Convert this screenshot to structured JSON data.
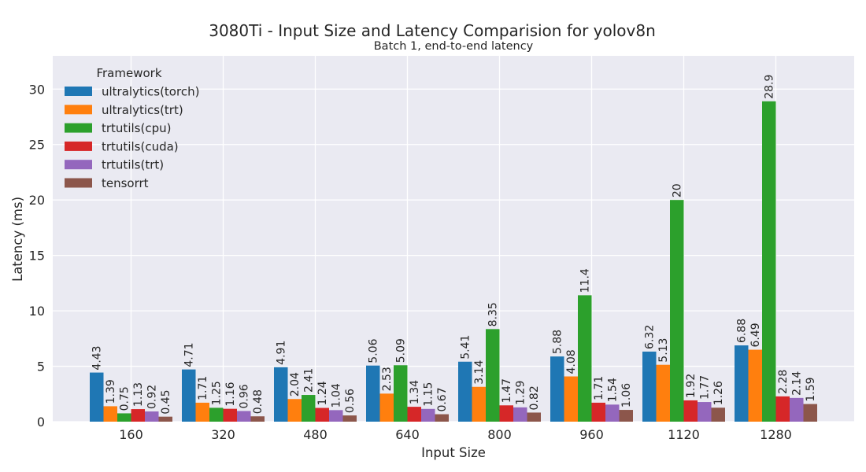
{
  "chart_data": {
    "type": "bar",
    "title": "3080Ti - Input Size and Latency Comparision for yolov8n",
    "subtitle": "Batch 1, end-to-end latency",
    "xlabel": "Input Size",
    "ylabel": "Latency (ms)",
    "ylim": [
      0,
      33
    ],
    "yticks": [
      0,
      5,
      10,
      15,
      20,
      25,
      30
    ],
    "grid": true,
    "legend_title": "Framework",
    "legend_position": "top-left",
    "categories": [
      "160",
      "320",
      "480",
      "640",
      "800",
      "960",
      "1120",
      "1280"
    ],
    "series": [
      {
        "name": "ultralytics(torch)",
        "color": "#1f77b4",
        "values": [
          4.43,
          4.71,
          4.91,
          5.06,
          5.41,
          5.88,
          6.32,
          6.88
        ],
        "labels": [
          "4.43",
          "4.71",
          "4.91",
          "5.06",
          "5.41",
          "5.88",
          "6.32",
          "6.88"
        ]
      },
      {
        "name": "ultralytics(trt)",
        "color": "#ff7f0e",
        "values": [
          1.39,
          1.71,
          2.04,
          2.53,
          3.14,
          4.08,
          5.13,
          6.49
        ],
        "labels": [
          "1.39",
          "1.71",
          "2.04",
          "2.53",
          "3.14",
          "4.08",
          "5.13",
          "6.49"
        ]
      },
      {
        "name": "trtutils(cpu)",
        "color": "#2ca02c",
        "values": [
          0.75,
          1.25,
          2.41,
          5.09,
          8.35,
          11.4,
          20,
          28.9
        ],
        "labels": [
          "0.75",
          "1.25",
          "2.41",
          "5.09",
          "8.35",
          "11.4",
          "20",
          "28.9"
        ]
      },
      {
        "name": "trtutils(cuda)",
        "color": "#d62728",
        "values": [
          1.13,
          1.16,
          1.24,
          1.34,
          1.47,
          1.71,
          1.92,
          2.28
        ],
        "labels": [
          "1.13",
          "1.16",
          "1.24",
          "1.34",
          "1.47",
          "1.71",
          "1.92",
          "2.28"
        ]
      },
      {
        "name": "trtutils(trt)",
        "color": "#9467bd",
        "values": [
          0.92,
          0.96,
          1.04,
          1.15,
          1.29,
          1.54,
          1.77,
          2.14
        ],
        "labels": [
          "0.92",
          "0.96",
          "1.04",
          "1.15",
          "1.29",
          "1.54",
          "1.77",
          "2.14"
        ]
      },
      {
        "name": "tensorrt",
        "color": "#8c564b",
        "values": [
          0.45,
          0.48,
          0.56,
          0.67,
          0.82,
          1.06,
          1.26,
          1.59
        ],
        "labels": [
          "0.45",
          "0.48",
          "0.56",
          "0.67",
          "0.82",
          "1.06",
          "1.26",
          "1.59"
        ]
      }
    ]
  }
}
